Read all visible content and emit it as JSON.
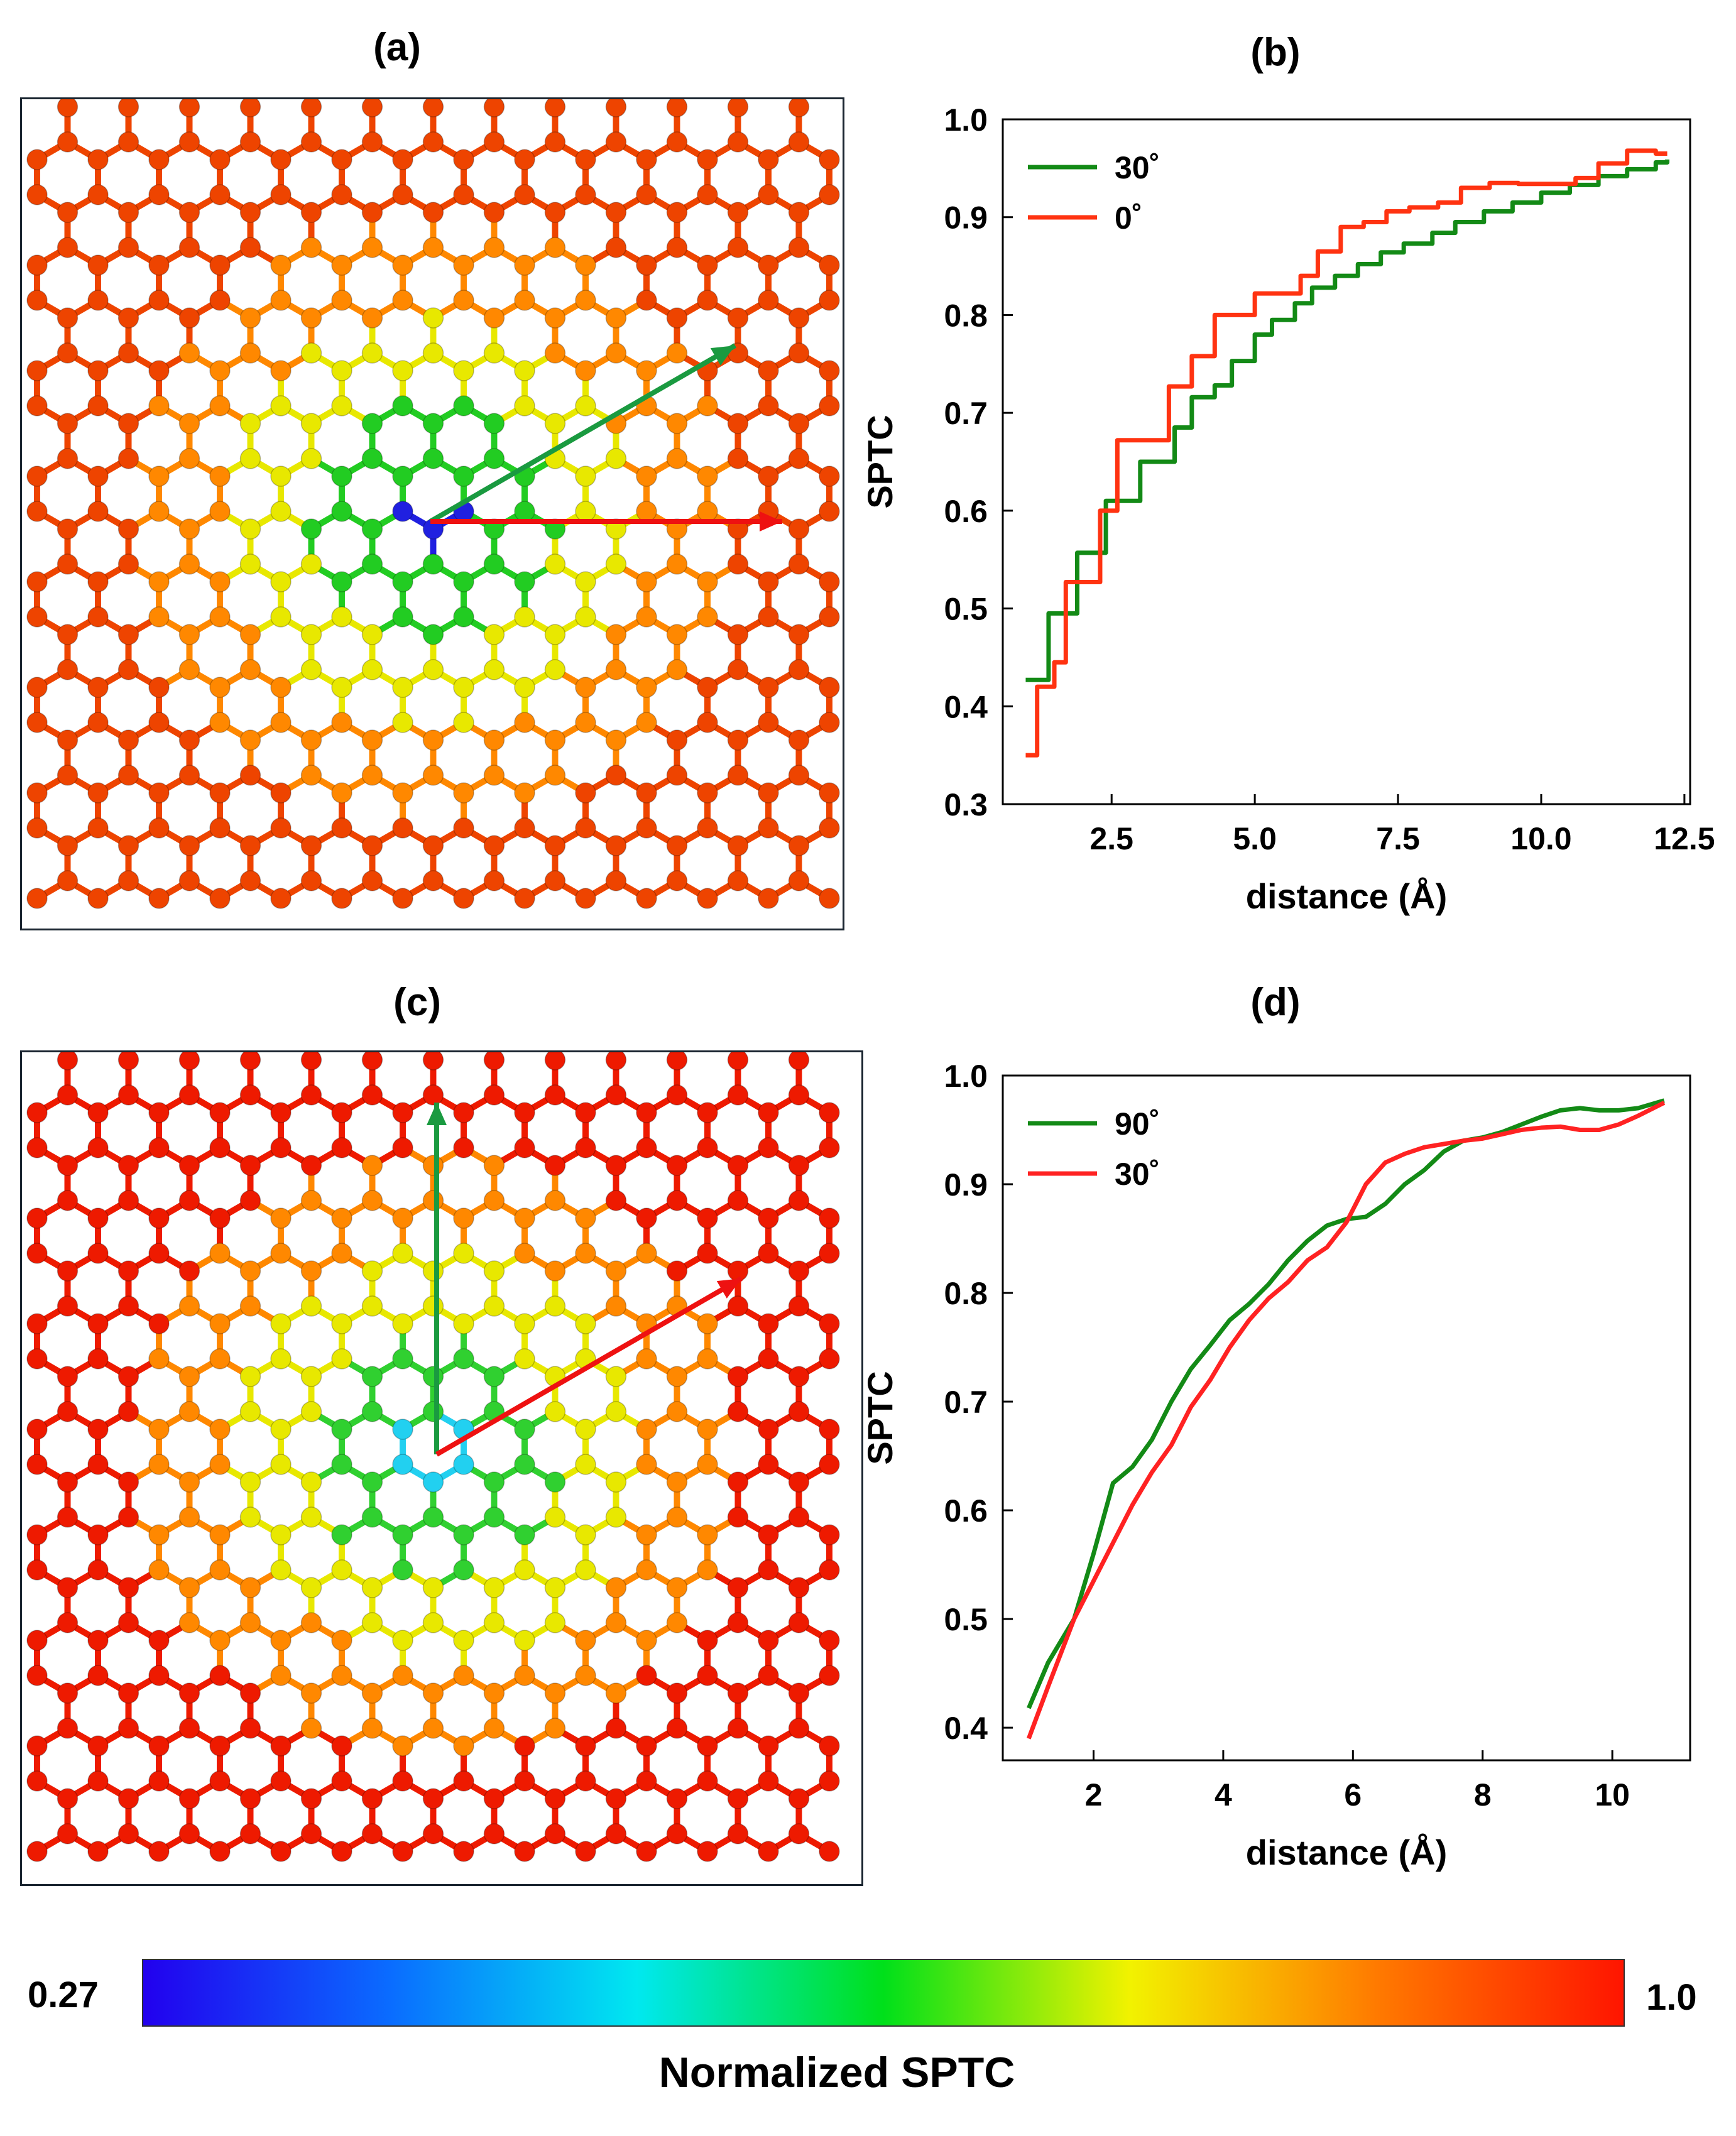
{
  "panels": {
    "a": {
      "label": "(a)"
    },
    "b": {
      "label": "(b)"
    },
    "c": {
      "label": "(c)"
    },
    "d": {
      "label": "(d)"
    }
  },
  "colorbar": {
    "min_label": "0.27",
    "max_label": "1.0",
    "title": "Normalized SPTC",
    "stops": [
      "#2200ee",
      "#0a6cff",
      "#00e8f0",
      "#00e01a",
      "#f2f200",
      "#ff7a00",
      "#ff1500"
    ]
  },
  "lattice_colors": {
    "a": {
      "defect": "#2020e0",
      "near": "#22cc22",
      "mid": "#e8e800",
      "far": "#ff8800",
      "edge": "#ee4400"
    },
    "c": {
      "defect": "#22d0f0",
      "near": "#30d030",
      "mid": "#e8e800",
      "far": "#ff8800",
      "edge": "#ee1a00"
    }
  },
  "arrows": {
    "a": [
      {
        "color": "#1a9a40",
        "angle_deg": 30
      },
      {
        "color": "#ee1111",
        "angle_deg": 0
      }
    ],
    "c": [
      {
        "color": "#1a9a40",
        "angle_deg": 90
      },
      {
        "color": "#ee1111",
        "angle_deg": 30
      }
    ]
  },
  "chart_data": [
    {
      "type": "line",
      "panel": "b",
      "xlabel": "distance (Å)",
      "ylabel": "SPTC",
      "xlim": [
        0.6,
        12.6
      ],
      "ylim": [
        0.3,
        1.0
      ],
      "xticks": [
        "2.5",
        "5.0",
        "7.5",
        "10.0",
        "12.5"
      ],
      "xtick_values": [
        2.5,
        5.0,
        7.5,
        10.0,
        12.5
      ],
      "yticks": [
        "0.3",
        "0.4",
        "0.5",
        "0.6",
        "0.7",
        "0.8",
        "0.9",
        "1.0"
      ],
      "ytick_values": [
        0.3,
        0.4,
        0.5,
        0.6,
        0.7,
        0.8,
        0.9,
        1.0
      ],
      "legend": "top-left",
      "series": [
        {
          "name": "30˚",
          "color": "#138a16",
          "step": true,
          "x": [
            1.0,
            1.4,
            1.6,
            1.9,
            2.1,
            2.4,
            2.7,
            3.0,
            3.3,
            3.6,
            3.9,
            4.3,
            4.6,
            5.0,
            5.3,
            5.7,
            6.0,
            6.4,
            6.8,
            7.2,
            7.6,
            8.1,
            8.5,
            9.0,
            9.5,
            10.0,
            10.5,
            11.0,
            11.5,
            12.0,
            12.2
          ],
          "y": [
            0.427,
            0.495,
            0.495,
            0.557,
            0.557,
            0.61,
            0.61,
            0.65,
            0.65,
            0.685,
            0.716,
            0.728,
            0.753,
            0.78,
            0.795,
            0.812,
            0.828,
            0.84,
            0.852,
            0.864,
            0.873,
            0.884,
            0.895,
            0.906,
            0.915,
            0.925,
            0.933,
            0.942,
            0.949,
            0.956,
            0.959
          ]
        },
        {
          "name": "0˚",
          "color": "#ff3311",
          "step": true,
          "x": [
            1.0,
            1.2,
            1.5,
            1.7,
            2.0,
            2.3,
            2.6,
            3.1,
            3.5,
            3.9,
            4.3,
            4.6,
            5.0,
            5.4,
            5.8,
            6.1,
            6.5,
            6.9,
            7.3,
            7.7,
            8.2,
            8.6,
            9.1,
            9.6,
            10.1,
            10.6,
            11.0,
            11.5,
            12.0,
            12.2
          ],
          "y": [
            0.35,
            0.42,
            0.445,
            0.527,
            0.527,
            0.6,
            0.672,
            0.672,
            0.727,
            0.758,
            0.8,
            0.8,
            0.822,
            0.822,
            0.84,
            0.865,
            0.89,
            0.895,
            0.906,
            0.91,
            0.915,
            0.93,
            0.935,
            0.934,
            0.934,
            0.94,
            0.955,
            0.968,
            0.965,
            0.965
          ]
        }
      ]
    },
    {
      "type": "line",
      "panel": "d",
      "xlabel": "distance (Å)",
      "ylabel": "SPTC",
      "xlim": [
        0.6,
        11.2
      ],
      "ylim": [
        0.37,
        1.0
      ],
      "xticks": [
        "2",
        "4",
        "6",
        "8",
        "10"
      ],
      "xtick_values": [
        2,
        4,
        6,
        8,
        10
      ],
      "yticks": [
        "0.4",
        "0.5",
        "0.6",
        "0.7",
        "0.8",
        "0.9",
        "1.0"
      ],
      "ytick_values": [
        0.4,
        0.5,
        0.6,
        0.7,
        0.8,
        0.9,
        1.0
      ],
      "legend": "top-left",
      "series": [
        {
          "name": "90˚",
          "color": "#138a16",
          "step": false,
          "x": [
            1.0,
            1.3,
            1.7,
            2.0,
            2.3,
            2.6,
            2.9,
            3.2,
            3.5,
            3.8,
            4.1,
            4.4,
            4.7,
            5.0,
            5.3,
            5.6,
            5.9,
            6.2,
            6.5,
            6.8,
            7.1,
            7.4,
            7.7,
            8.0,
            8.3,
            8.6,
            8.9,
            9.2,
            9.5,
            9.8,
            10.1,
            10.4,
            10.8
          ],
          "y": [
            0.418,
            0.46,
            0.5,
            0.56,
            0.625,
            0.64,
            0.665,
            0.7,
            0.73,
            0.752,
            0.775,
            0.79,
            0.808,
            0.83,
            0.848,
            0.862,
            0.868,
            0.87,
            0.882,
            0.9,
            0.913,
            0.93,
            0.94,
            0.943,
            0.948,
            0.955,
            0.962,
            0.968,
            0.97,
            0.968,
            0.968,
            0.97,
            0.977
          ]
        },
        {
          "name": "30˚",
          "color": "#ff2222",
          "step": false,
          "x": [
            1.0,
            1.3,
            1.7,
            2.0,
            2.3,
            2.6,
            2.9,
            3.2,
            3.5,
            3.8,
            4.1,
            4.4,
            4.7,
            5.0,
            5.3,
            5.6,
            5.9,
            6.2,
            6.5,
            6.8,
            7.1,
            7.4,
            7.7,
            8.0,
            8.3,
            8.6,
            8.9,
            9.2,
            9.5,
            9.8,
            10.1,
            10.4,
            10.8
          ],
          "y": [
            0.39,
            0.438,
            0.5,
            0.535,
            0.57,
            0.605,
            0.635,
            0.66,
            0.695,
            0.72,
            0.75,
            0.775,
            0.795,
            0.81,
            0.83,
            0.842,
            0.865,
            0.9,
            0.92,
            0.928,
            0.934,
            0.937,
            0.94,
            0.942,
            0.946,
            0.95,
            0.952,
            0.953,
            0.95,
            0.95,
            0.955,
            0.963,
            0.975
          ]
        }
      ]
    }
  ]
}
